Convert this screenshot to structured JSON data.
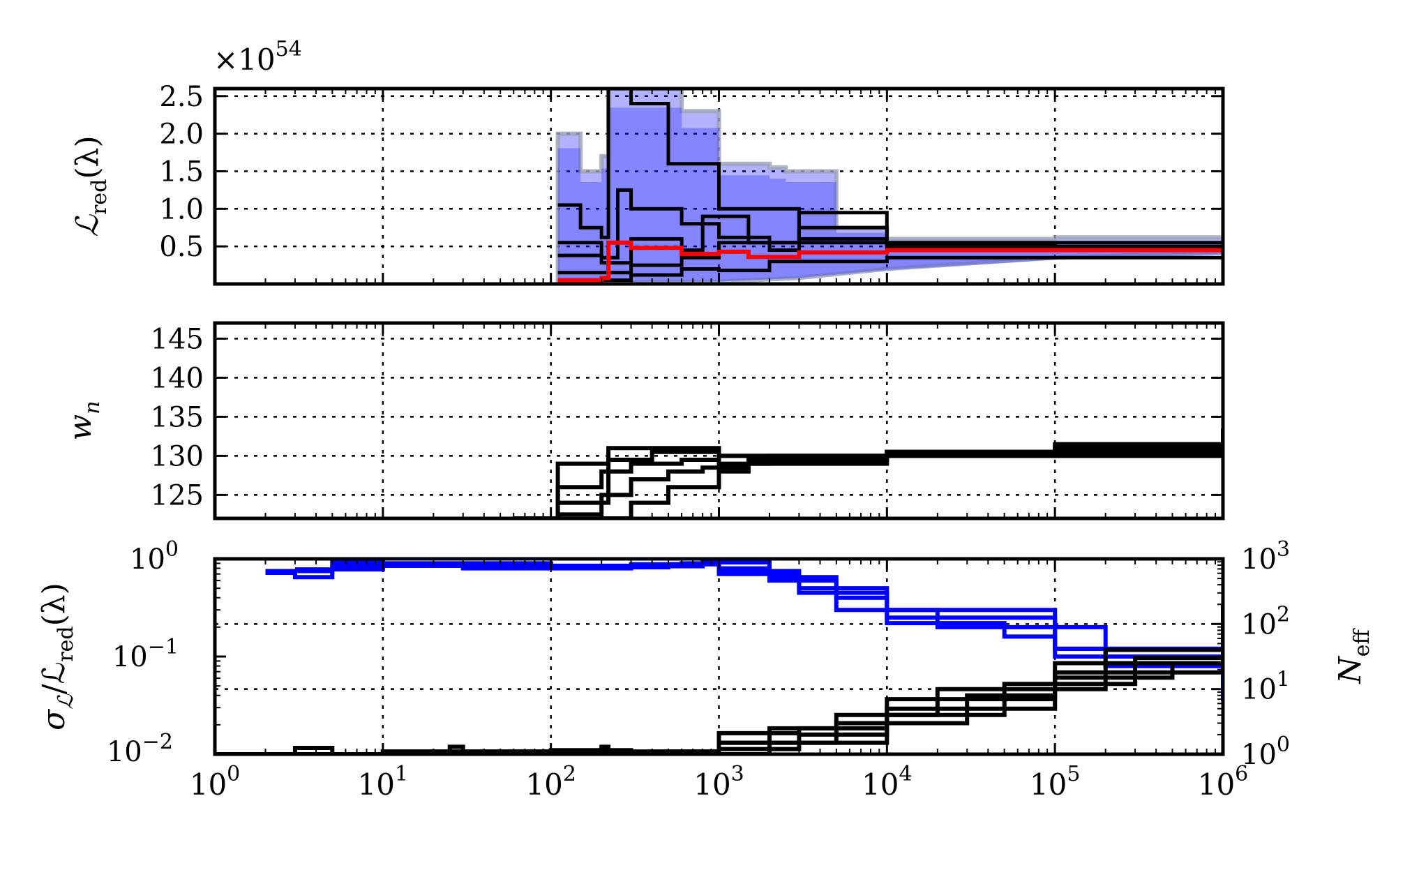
{
  "chart_data": [
    {
      "panel": "top",
      "type": "line",
      "x_scale": "log",
      "xlim": [
        1,
        1000000
      ],
      "ylim": [
        0,
        2.6
      ],
      "y_multiplier_label": "×10",
      "y_multiplier_exponent": "54",
      "y_ticks": [
        "0.5",
        "1.0",
        "1.5",
        "2.0",
        "2.5"
      ],
      "y_tick_values": [
        0.5,
        1.0,
        1.5,
        2.0,
        2.5
      ],
      "ylabel_main": "ℒ",
      "ylabel_sub": "red",
      "ylabel_tail": "(λ)",
      "grid": true,
      "colors": {
        "band": "#0000ff",
        "band_edge": "#9aa0b4",
        "runs": "#000000",
        "mean": "#ff0000"
      },
      "mean_series": {
        "x": [
          110,
          200,
          220,
          300,
          600,
          1000,
          1500,
          3000,
          10000,
          100000,
          1000000
        ],
        "y": [
          0.05,
          0.08,
          0.55,
          0.48,
          0.4,
          0.43,
          0.36,
          0.42,
          0.45,
          0.45,
          0.49
        ]
      },
      "run_series": [
        {
          "x": [
            110,
            150,
            200,
            220,
            300,
            500,
            1000,
            3000,
            10000,
            100000,
            1000000
          ],
          "y": [
            1.05,
            0.75,
            0.62,
            2.6,
            2.4,
            1.6,
            1.0,
            0.6,
            0.52,
            0.48,
            0.5
          ]
        },
        {
          "x": [
            110,
            200,
            250,
            300,
            600,
            1000,
            2000,
            10000,
            1000000
          ],
          "y": [
            0.55,
            0.35,
            1.25,
            1.0,
            0.8,
            0.62,
            0.55,
            0.5,
            0.48
          ]
        },
        {
          "x": [
            110,
            200,
            300,
            600,
            800,
            1500,
            3000,
            10000,
            1000000
          ],
          "y": [
            0.38,
            0.28,
            0.6,
            0.45,
            0.9,
            0.55,
            0.95,
            0.55,
            0.46
          ]
        },
        {
          "x": [
            110,
            300,
            600,
            1000,
            2000,
            3000,
            10000,
            1000000
          ],
          "y": [
            0.15,
            0.25,
            0.35,
            0.55,
            0.45,
            0.75,
            0.45,
            0.44
          ]
        },
        {
          "x": [
            110,
            300,
            600,
            1000,
            2000,
            5000,
            10000,
            1000000
          ],
          "y": [
            0.05,
            0.12,
            0.2,
            0.18,
            0.3,
            0.3,
            0.35,
            0.42
          ]
        }
      ],
      "band_upper": {
        "x": [
          110,
          150,
          200,
          220,
          300,
          600,
          1000,
          2000,
          2500,
          5000,
          10000,
          100000,
          1000000
        ],
        "y": [
          2.0,
          1.5,
          1.7,
          2.6,
          2.6,
          2.3,
          1.6,
          1.55,
          1.5,
          0.75,
          0.6,
          0.62,
          0.55
        ]
      },
      "band_lower": {
        "x": [
          110,
          1000,
          3000,
          10000,
          100000,
          1000000
        ],
        "y": [
          0.02,
          0.03,
          0.08,
          0.2,
          0.35,
          0.42
        ]
      }
    },
    {
      "panel": "middle",
      "type": "line",
      "x_scale": "log",
      "xlim": [
        1,
        1000000
      ],
      "ylim": [
        122,
        147
      ],
      "y_ticks": [
        "125",
        "130",
        "135",
        "140",
        "145"
      ],
      "y_tick_values": [
        125,
        130,
        135,
        140,
        145
      ],
      "ylabel_main": "w",
      "ylabel_sub": "n",
      "grid": true,
      "colors": {
        "runs": "#000000"
      },
      "run_series": [
        {
          "x": [
            60,
            100,
            110,
            220,
            400,
            1000,
            2000,
            10000,
            100000,
            1000000
          ],
          "y": [
            122,
            122,
            129,
            131,
            131,
            130,
            130,
            130.5,
            131.5,
            133.5
          ]
        },
        {
          "x": [
            100,
            110,
            200,
            300,
            600,
            1000,
            10000,
            100000,
            1000000
          ],
          "y": [
            122,
            126,
            128,
            129,
            129.5,
            130,
            130.5,
            131,
            132.5
          ]
        },
        {
          "x": [
            110,
            200,
            300,
            500,
            800,
            1500,
            10000,
            1000000
          ],
          "y": [
            124,
            125,
            127,
            128,
            128.5,
            129.5,
            130,
            133
          ]
        },
        {
          "x": [
            110,
            200,
            220,
            400,
            1000,
            2000,
            10000,
            1000000
          ],
          "y": [
            122.5,
            124,
            129.5,
            130.5,
            129,
            130,
            130.5,
            132.8
          ]
        },
        {
          "x": [
            200,
            300,
            500,
            1000,
            1500,
            10000,
            1000000
          ],
          "y": [
            122,
            124,
            126,
            128,
            129,
            130,
            132
          ]
        }
      ]
    },
    {
      "panel": "bottom",
      "type": "line",
      "x_scale": "log",
      "y_scale": "log",
      "xlim": [
        1,
        1000000
      ],
      "ylim": [
        0.01,
        1
      ],
      "y_ticks_base": [
        "10",
        "10"
      ],
      "y_ticks_exp": [
        "0",
        "−1"
      ],
      "y_tick_values": [
        1,
        0.1
      ],
      "y_tick_bottom_base": "10",
      "y_tick_bottom_exp": "−2",
      "ylabel_main": "σ",
      "ylabel_sub": "ℒ",
      "ylabel_mid": "/ℒ",
      "ylabel_mid_sub": "red",
      "ylabel_tail": "(λ)",
      "right_axis": {
        "ylim": [
          1,
          1000
        ],
        "ticks_base": [
          "10",
          "10",
          "10",
          "10"
        ],
        "ticks_exp": [
          "0",
          "1",
          "2",
          "3"
        ],
        "tick_values": [
          1,
          10,
          100,
          1000
        ],
        "ylabel_main": "N",
        "ylabel_sub": "eff"
      },
      "x_ticks_base": [
        "10",
        "10",
        "10",
        "10",
        "10",
        "10",
        "10"
      ],
      "x_ticks_exp": [
        "0",
        "1",
        "2",
        "3",
        "4",
        "5",
        "6"
      ],
      "x_tick_values": [
        1,
        10,
        100,
        1000,
        10000,
        100000,
        1000000
      ],
      "grid": true,
      "colors": {
        "sigma": "#0000ff",
        "neff": "#000000"
      },
      "sigma_series": [
        {
          "x": [
            2,
            3,
            5,
            10,
            100,
            500,
            1000,
            2000,
            5000,
            10000,
            50000,
            100000,
            1000000
          ],
          "y": [
            0.72,
            0.65,
            0.82,
            0.85,
            0.82,
            0.88,
            0.8,
            0.65,
            0.4,
            0.22,
            0.16,
            0.12,
            0.055
          ]
        },
        {
          "x": [
            2,
            5,
            10,
            100,
            600,
            1000,
            3000,
            10000,
            100000,
            1000000
          ],
          "y": [
            0.75,
            0.92,
            0.9,
            0.85,
            0.9,
            0.7,
            0.45,
            0.25,
            0.1,
            0.035
          ]
        },
        {
          "x": [
            3,
            10,
            100,
            800,
            2000,
            5000,
            20000,
            200000,
            1000000
          ],
          "y": [
            0.78,
            0.88,
            0.84,
            0.92,
            0.6,
            0.3,
            0.2,
            0.08,
            0.04
          ]
        },
        {
          "x": [
            5,
            30,
            300,
            1000,
            3000,
            10000,
            100000,
            1000000
          ],
          "y": [
            0.85,
            0.8,
            0.88,
            0.75,
            0.5,
            0.3,
            0.12,
            0.045
          ]
        }
      ],
      "neff_series": [
        {
          "x": [
            1,
            2,
            3,
            5,
            10,
            100,
            300,
            1000,
            10000,
            100000,
            1000000
          ],
          "y": [
            1,
            1,
            1.25,
            1,
            1.1,
            1.15,
            1.1,
            1.5,
            5,
            18,
            90
          ]
        },
        {
          "x": [
            1,
            10,
            25,
            30,
            100,
            200,
            220,
            500,
            1000,
            3000,
            10000,
            100000,
            1000000
          ],
          "y": [
            1,
            1.1,
            1.3,
            1.1,
            1.1,
            1.3,
            1,
            1.1,
            2.1,
            2.5,
            7,
            25,
            120
          ]
        },
        {
          "x": [
            1,
            200,
            400,
            1000,
            2000,
            5000,
            20000,
            200000,
            1000000
          ],
          "y": [
            1,
            1,
            1.1,
            1.5,
            2.5,
            4,
            10,
            40,
            60
          ]
        },
        {
          "x": [
            1,
            500,
            1000,
            3000,
            10000,
            50000,
            300000,
            1000000
          ],
          "y": [
            1,
            1,
            1.2,
            2,
            4,
            12,
            30,
            200
          ]
        },
        {
          "x": [
            1,
            800,
            2000,
            5000,
            30000,
            100000,
            500000,
            1000000
          ],
          "y": [
            1,
            1,
            1.5,
            3,
            8,
            15,
            25,
            40
          ]
        }
      ]
    }
  ]
}
